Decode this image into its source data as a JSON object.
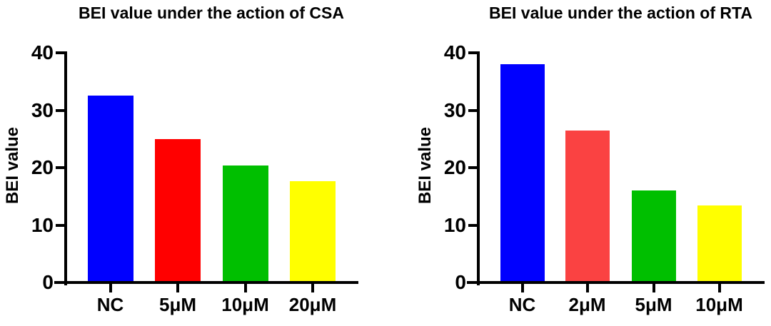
{
  "figure": {
    "background_color": "#FFFFFF",
    "text_color": "#000000",
    "axis_color": "#000000"
  },
  "chart_data": [
    {
      "type": "bar",
      "title": "BEI value under the action of CSA",
      "xlabel": "",
      "ylabel": "BEI value",
      "categories": [
        "NC",
        "5μM",
        "10μM",
        "20μM"
      ],
      "values": [
        32.5,
        25,
        20.4,
        17.6
      ],
      "bar_colors": [
        "#0000FF",
        "#FF0000",
        "#00BF00",
        "#FFFF00"
      ],
      "ylim": [
        0,
        40
      ],
      "yticks": [
        0,
        10,
        20,
        30,
        40
      ],
      "grid": false,
      "legend": "none",
      "axis_color": "#000000",
      "text_color": "#000000"
    },
    {
      "type": "bar",
      "title": "BEI value under the action of RTA",
      "xlabel": "",
      "ylabel": "BEI value",
      "categories": [
        "NC",
        "2μM",
        "5μM",
        "10μM"
      ],
      "values": [
        38,
        26.5,
        16,
        13.4
      ],
      "bar_colors": [
        "#0000FF",
        "#FA4242",
        "#00BF00",
        "#FFFF00"
      ],
      "ylim": [
        0,
        40
      ],
      "yticks": [
        0,
        10,
        20,
        30,
        40
      ],
      "grid": false,
      "legend": "none",
      "axis_color": "#000000",
      "text_color": "#000000"
    }
  ]
}
